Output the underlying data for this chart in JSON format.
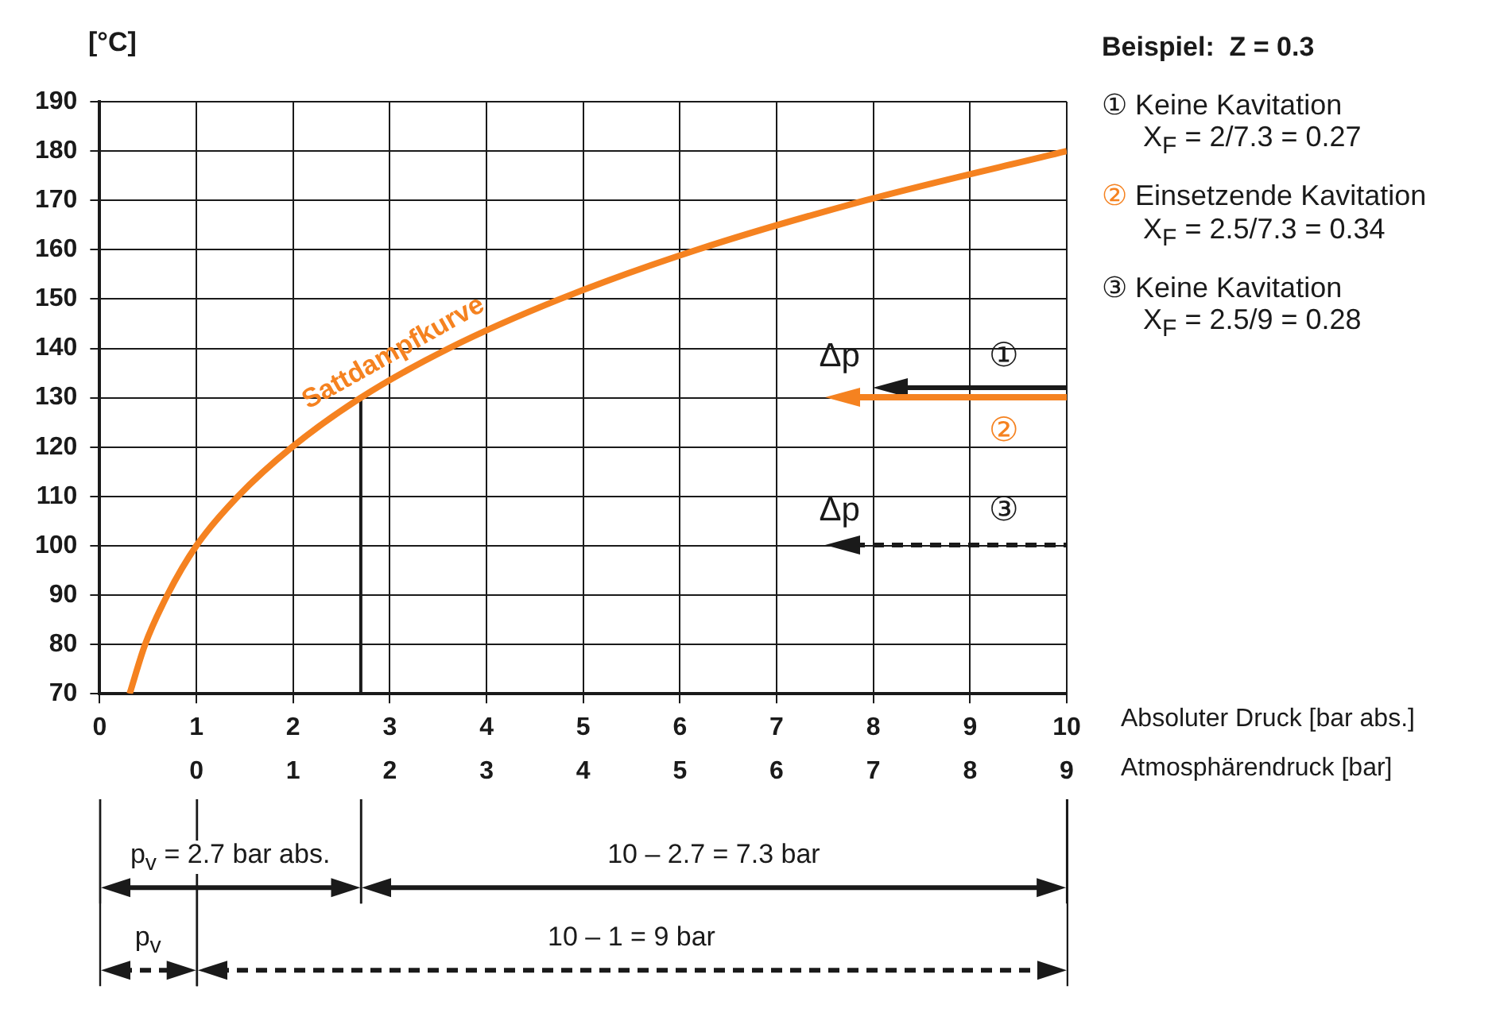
{
  "chart_data": {
    "type": "line",
    "ylabel": "[°C]",
    "xlabel": "Absoluter Druck [bar abs.]",
    "x2label": "Atmosphärendruck [bar]",
    "xlim": [
      0,
      10
    ],
    "xticks": [
      0,
      1,
      2,
      3,
      4,
      5,
      6,
      7,
      8,
      9,
      10
    ],
    "x2lim": [
      -1,
      9
    ],
    "x2ticks": [
      0,
      1,
      2,
      3,
      4,
      5,
      6,
      7,
      8,
      9
    ],
    "ylim": [
      70,
      190
    ],
    "yticks": [
      70,
      80,
      90,
      100,
      110,
      120,
      130,
      140,
      150,
      160,
      170,
      180,
      190
    ],
    "grid": true,
    "marker": "none",
    "series": [
      {
        "name": "Sattdampfkurve",
        "color": "#f58220",
        "x": [
          0.31,
          0.47,
          0.7,
          1.0,
          1.43,
          1.99,
          2.7,
          3.61,
          4.76,
          6.18,
          7.92,
          10.0
        ],
        "values": [
          70,
          80,
          90,
          100,
          110,
          120,
          130,
          140,
          150,
          160,
          170,
          180
        ]
      },
      {
        "color": "#1a1a1a",
        "x": [
          2.7,
          2.7
        ],
        "values": [
          70,
          130
        ]
      }
    ],
    "annotations": [
      "Δp",
      "①",
      "②",
      "Δp",
      "③",
      "Beispiel:  Z = 0.3",
      "① Keine Kavitation",
      "X$_{F}$ = 2/7.3 = 0.27",
      "② Einsetzende Kavitation",
      "X$_{F}$ = 2.5/7.3 = 0.34",
      "③ Keine Kavitation",
      "X$_{F}$ = 2.5/9 = 0.28",
      "p$_{v}$ = 2.7 bar abs.",
      "10 – 2.7 = 7.3 bar",
      "p$_{v}$",
      "10 – 1 = 9 bar"
    ]
  }
}
